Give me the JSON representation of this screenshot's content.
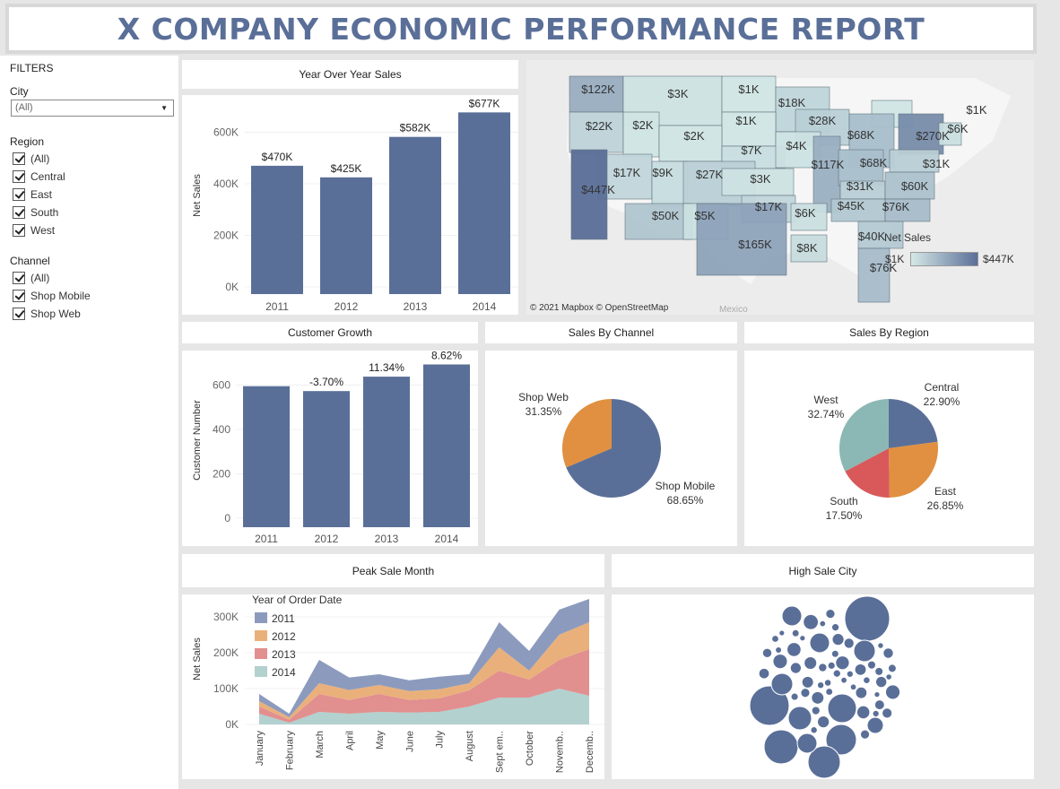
{
  "header": {
    "title": "X COMPANY ECONOMIC PERFORMANCE REPORT"
  },
  "filters": {
    "title": "FILTERS",
    "city": {
      "label": "City",
      "value": "(All)"
    },
    "region": {
      "label": "Region",
      "options": [
        "(All)",
        "Central",
        "East",
        "South",
        "West"
      ]
    },
    "channel": {
      "label": "Channel",
      "options": [
        "(All)",
        "Shop Mobile",
        "Shop Web"
      ]
    }
  },
  "colors": {
    "primary": "#5a6f98",
    "orange": "#e09040",
    "red": "#d9595a",
    "teal": "#8bb8b4",
    "y2011": "#8c9bbd",
    "y2012": "#eab07b",
    "y2013": "#e28f8f",
    "y2014": "#b2d1cf"
  },
  "panels": {
    "yoy_title": "Year Over Year Sales",
    "growth_title": "Customer Growth",
    "channel_title": "Sales By Channel",
    "region_title": "Sales By Region",
    "peak_title": "Peak Sale Month",
    "city_title": "High Sale City"
  },
  "map": {
    "attribution": "© 2021 Mapbox  © OpenStreetMap",
    "mexico": "Mexico",
    "legend_title": "Net Sales",
    "legend_min": "$1K",
    "legend_max": "$447K",
    "states": [
      {
        "label": "$122K",
        "value": 122
      },
      {
        "label": "$3K",
        "value": 3
      },
      {
        "label": "$1K",
        "value": 1
      },
      {
        "label": "$18K",
        "value": 18
      },
      {
        "label": "$1K",
        "value": 1
      },
      {
        "label": "$22K",
        "value": 22
      },
      {
        "label": "$2K",
        "value": 2
      },
      {
        "label": "$1K",
        "value": 1
      },
      {
        "label": "$28K",
        "value": 28
      },
      {
        "label": "$270K",
        "value": 270
      },
      {
        "label": "$6K",
        "value": 6
      },
      {
        "label": "$2K",
        "value": 2
      },
      {
        "label": "$68K",
        "value": 68
      },
      {
        "label": "$7K",
        "value": 7
      },
      {
        "label": "$4K",
        "value": 4
      },
      {
        "label": "$17K",
        "value": 17
      },
      {
        "label": "$9K",
        "value": 9
      },
      {
        "label": "$27K",
        "value": 27
      },
      {
        "label": "$117K",
        "value": 117
      },
      {
        "label": "$68K",
        "value": 68
      },
      {
        "label": "$31K",
        "value": 31
      },
      {
        "label": "$447K",
        "value": 447
      },
      {
        "label": "$3K",
        "value": 3
      },
      {
        "label": "$31K",
        "value": 31
      },
      {
        "label": "$60K",
        "value": 60
      },
      {
        "label": "$17K",
        "value": 17
      },
      {
        "label": "$45K",
        "value": 45
      },
      {
        "label": "$76K",
        "value": 76
      },
      {
        "label": "$50K",
        "value": 50
      },
      {
        "label": "$5K",
        "value": 5
      },
      {
        "label": "$6K",
        "value": 6
      },
      {
        "label": "$40K",
        "value": 40
      },
      {
        "label": "$165K",
        "value": 165
      },
      {
        "label": "$8K",
        "value": 8
      },
      {
        "label": "$76K",
        "value": 76
      }
    ]
  },
  "chart_data": [
    {
      "type": "bar",
      "title": "Year Over Year Sales",
      "categories": [
        "2011",
        "2012",
        "2013",
        "2014"
      ],
      "values": [
        470,
        425,
        582,
        677
      ],
      "value_labels": [
        "$470K",
        "$425K",
        "$582K",
        "$677K"
      ],
      "ylabel": "Net Sales",
      "yticks": [
        "0K",
        "200K",
        "400K",
        "600K"
      ],
      "ylim": [
        0,
        700
      ]
    },
    {
      "type": "bar",
      "title": "Customer Growth",
      "categories": [
        "2011",
        "2012",
        "2013",
        "2014"
      ],
      "values": [
        595,
        573,
        638,
        693
      ],
      "value_labels": [
        "",
        "-3.70%",
        "11.34%",
        "8.62%"
      ],
      "ylabel": "Customer Number",
      "yticks": [
        "0",
        "200",
        "400",
        "600",
        "800"
      ],
      "ylim": [
        0,
        800
      ]
    },
    {
      "type": "pie",
      "title": "Sales By Channel",
      "slices": [
        {
          "name": "Shop Mobile",
          "label": "68.65%",
          "value": 68.65
        },
        {
          "name": "Shop Web",
          "label": "31.35%",
          "value": 31.35
        }
      ]
    },
    {
      "type": "pie",
      "title": "Sales By Region",
      "slices": [
        {
          "name": "Central",
          "label": "22.90%",
          "value": 22.9
        },
        {
          "name": "East",
          "label": "26.85%",
          "value": 26.85
        },
        {
          "name": "South",
          "label": "17.50%",
          "value": 17.5
        },
        {
          "name": "West",
          "label": "32.74%",
          "value": 32.74
        }
      ]
    },
    {
      "type": "area",
      "title": "Peak Sale Month",
      "stacked": true,
      "legend_title": "Year of Order Date",
      "ylabel": "Net Sales",
      "yticks": [
        "0K",
        "100K",
        "200K",
        "300K"
      ],
      "ylim": [
        0,
        360
      ],
      "categories": [
        "January",
        "February",
        "March",
        "April",
        "May",
        "June",
        "July",
        "August",
        "Sept em..",
        "October",
        "Novemb..",
        "Decemb.."
      ],
      "series": [
        {
          "name": "2014",
          "values": [
            30,
            5,
            35,
            30,
            35,
            33,
            35,
            50,
            75,
            75,
            100,
            80
          ]
        },
        {
          "name": "2013",
          "values": [
            20,
            8,
            50,
            38,
            50,
            35,
            38,
            45,
            75,
            50,
            80,
            130
          ]
        },
        {
          "name": "2012",
          "values": [
            15,
            7,
            30,
            28,
            25,
            25,
            25,
            20,
            65,
            25,
            70,
            75
          ]
        },
        {
          "name": "2011",
          "values": [
            20,
            10,
            65,
            35,
            30,
            30,
            35,
            25,
            70,
            55,
            70,
            65
          ]
        }
      ]
    }
  ]
}
